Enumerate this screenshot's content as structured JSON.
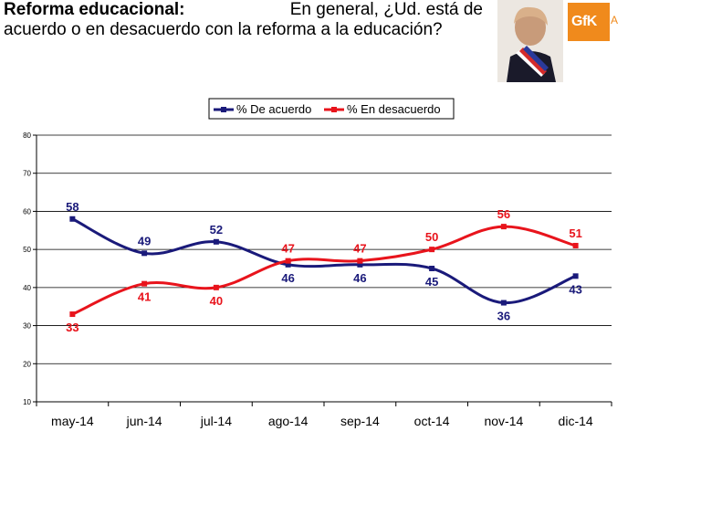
{
  "header": {
    "bold": "Reforma educacional:",
    "line1_rest": "En general, ¿Ud. está de",
    "line2": "acuerdo o en desacuerdo con la reforma a la educación?"
  },
  "logo": {
    "text": "GfK",
    "tail": "A"
  },
  "colors": {
    "acuerdo": "#1a1a7a",
    "desacuerdo": "#e8141c",
    "grid": "#000000",
    "logo": "#f08a1c"
  },
  "chart_data": {
    "type": "line",
    "categories": [
      "may-14",
      "jun-14",
      "jul-14",
      "ago-14",
      "sep-14",
      "oct-14",
      "nov-14",
      "dic-14"
    ],
    "series": [
      {
        "name": "% De acuerdo",
        "values": [
          58,
          49,
          52,
          46,
          46,
          45,
          36,
          43
        ]
      },
      {
        "name": "% En desacuerdo",
        "values": [
          33,
          41,
          40,
          47,
          47,
          50,
          56,
          51
        ]
      }
    ],
    "ylim": [
      10,
      80
    ],
    "yticks": [
      10,
      20,
      30,
      40,
      50,
      60,
      70,
      80
    ],
    "grid": true,
    "legend": "top"
  }
}
